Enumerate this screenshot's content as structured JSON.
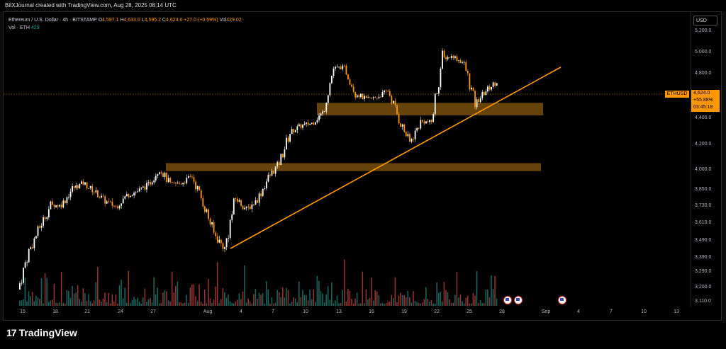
{
  "header": {
    "credit": "BitXJournal created with TradingView.com, Aug 28, 2025 08:14 UTC"
  },
  "legend": {
    "symbol_line": "Ethereum / U.S. Dollar · 4h · BITSTAMP",
    "o_label": "O",
    "o_value": "4,597.1",
    "h_label": "H",
    "h_value": "4,633.0",
    "l_label": "L",
    "l_value": "4,595.2",
    "c_label": "C",
    "c_value": "4,624.0",
    "change": "+27.0 (+0.59%)",
    "vol_label": "Vol",
    "vol_value": "429.02",
    "vol_line_label": "Vol · ETH",
    "vol_line_value": "429"
  },
  "axis": {
    "currency": "USD",
    "price_ticks": [
      "5,200.0",
      "5,000.0",
      "4,800.0",
      "4,400.0",
      "4,200.0",
      "4,000.0",
      "3,850.0",
      "3,730.0",
      "3,610.0",
      "3,490.0",
      "3,390.0",
      "3,290.0",
      "3,200.0",
      "3,110.0"
    ],
    "date_ticks": [
      "15",
      "18",
      "21",
      "24",
      "27",
      "Aug",
      "4",
      "7",
      "10",
      "13",
      "16",
      "19",
      "22",
      "25",
      "28",
      "Sep",
      "4",
      "7",
      "10",
      "13"
    ]
  },
  "price_label": {
    "symbol": "ETHUSD",
    "price": "4,624.0",
    "change": "+55.88%",
    "countdown": "03:45:18"
  },
  "footer": {
    "logo_mark": "17",
    "logo_text": "TradingView"
  },
  "colors": {
    "up": "#ffffff",
    "down": "#ff9800",
    "vol_up": "#26a69a",
    "vol_down": "#ef5350",
    "zone": "#8a5a10",
    "trendline": "#ff9800"
  },
  "chart_data": {
    "type": "candlestick",
    "symbol": "ETHUSD",
    "timeframe": "4h",
    "exchange": "BITSTAMP",
    "ylim": [
      3110,
      5200
    ],
    "close_path": [
      {
        "x": "Jul 15",
        "y": 3110
      },
      {
        "x": "Jul 16",
        "y": 3350
      },
      {
        "x": "Jul 17",
        "y": 3500
      },
      {
        "x": "Jul 18",
        "y": 3650
      },
      {
        "x": "Jul 19",
        "y": 3650
      },
      {
        "x": "Jul 20",
        "y": 3770
      },
      {
        "x": "Jul 21",
        "y": 3810
      },
      {
        "x": "Jul 22",
        "y": 3750
      },
      {
        "x": "Jul 23",
        "y": 3680
      },
      {
        "x": "Jul 24",
        "y": 3640
      },
      {
        "x": "Jul 25",
        "y": 3720
      },
      {
        "x": "Jul 26",
        "y": 3750
      },
      {
        "x": "Jul 27",
        "y": 3800
      },
      {
        "x": "Jul 28",
        "y": 3920
      },
      {
        "x": "Jul 29",
        "y": 3800
      },
      {
        "x": "Jul 30",
        "y": 3810
      },
      {
        "x": "Jul 31",
        "y": 3860
      },
      {
        "x": "Aug 1",
        "y": 3670
      },
      {
        "x": "Aug 2",
        "y": 3460
      },
      {
        "x": "Aug 3",
        "y": 3370
      },
      {
        "x": "Aug 4",
        "y": 3700
      },
      {
        "x": "Aug 5",
        "y": 3620
      },
      {
        "x": "Aug 6",
        "y": 3690
      },
      {
        "x": "Aug 7",
        "y": 3850
      },
      {
        "x": "Aug 8",
        "y": 3960
      },
      {
        "x": "Aug 9",
        "y": 4200
      },
      {
        "x": "Aug 10",
        "y": 4250
      },
      {
        "x": "Aug 11",
        "y": 4270
      },
      {
        "x": "Aug 12",
        "y": 4350
      },
      {
        "x": "Aug 13",
        "y": 4740
      },
      {
        "x": "Aug 14",
        "y": 4750
      },
      {
        "x": "Aug 15",
        "y": 4520
      },
      {
        "x": "Aug 16",
        "y": 4460
      },
      {
        "x": "Aug 17",
        "y": 4480
      },
      {
        "x": "Aug 18",
        "y": 4540
      },
      {
        "x": "Aug 19",
        "y": 4300
      },
      {
        "x": "Aug 20",
        "y": 4120
      },
      {
        "x": "Aug 21",
        "y": 4280
      },
      {
        "x": "Aug 22",
        "y": 4280
      },
      {
        "x": "Aug 23",
        "y": 4830
      },
      {
        "x": "Aug 24",
        "y": 4850
      },
      {
        "x": "Aug 25",
        "y": 4780
      },
      {
        "x": "Aug 26",
        "y": 4420
      },
      {
        "x": "Aug 27",
        "y": 4540
      },
      {
        "x": "Aug 28",
        "y": 4624
      }
    ],
    "zones": [
      {
        "from": 4330,
        "to": 4430
      },
      {
        "from": 3900,
        "to": 3960
      }
    ],
    "trendline": {
      "from": {
        "x": "Aug 3",
        "y": 3370
      },
      "to": {
        "x": "Aug 31",
        "y": 4750
      }
    }
  }
}
